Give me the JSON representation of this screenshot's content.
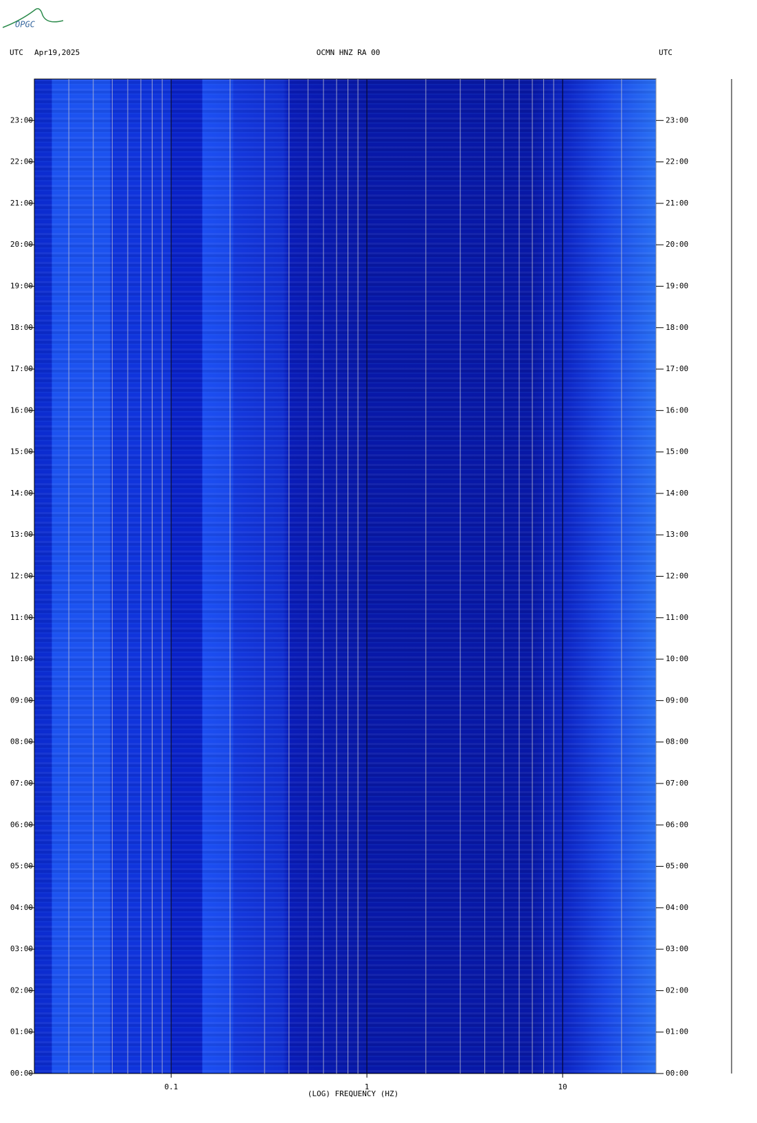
{
  "logo": "OPGC",
  "chart_data": {
    "type": "spectrogram",
    "title": "OCMN HNZ RA 00",
    "date": "Apr19,2025",
    "left_label": "UTC",
    "right_label": "UTC",
    "x_label": "(LOG) FREQUENCY (HZ)",
    "x_log": true,
    "xlim": [
      0.02,
      30
    ],
    "xticks": [
      {
        "value": 0.1,
        "label": "0.1"
      },
      1,
      10
    ],
    "xgrid": [
      0.03,
      0.04,
      0.05,
      0.06,
      0.07,
      0.08,
      0.09,
      0.1,
      0.2,
      0.3,
      0.4,
      0.5,
      0.6,
      0.7,
      0.8,
      0.9,
      1,
      2,
      3,
      4,
      5,
      6,
      7,
      8,
      9,
      10,
      20,
      30
    ],
    "ylim": [
      0,
      24
    ],
    "yticks": [
      {
        "value": 0,
        "label": "00:00"
      },
      {
        "value": 1,
        "label": "01:00"
      },
      {
        "value": 2,
        "label": "02:00"
      },
      {
        "value": 3,
        "label": "03:00"
      },
      {
        "value": 4,
        "label": "04:00"
      },
      {
        "value": 5,
        "label": "05:00"
      },
      {
        "value": 6,
        "label": "06:00"
      },
      {
        "value": 7,
        "label": "07:00"
      },
      {
        "value": 8,
        "label": "08:00"
      },
      {
        "value": 9,
        "label": "09:00"
      },
      {
        "value": 10,
        "label": "10:00"
      },
      {
        "value": 11,
        "label": "11:00"
      },
      {
        "value": 12,
        "label": "12:00"
      },
      {
        "value": 13,
        "label": "13:00"
      },
      {
        "value": 14,
        "label": "14:00"
      },
      {
        "value": 15,
        "label": "15:00"
      },
      {
        "value": 16,
        "label": "16:00"
      },
      {
        "value": 17,
        "label": "17:00"
      },
      {
        "value": 18,
        "label": "18:00"
      },
      {
        "value": 19,
        "label": "19:00"
      },
      {
        "value": 20,
        "label": "20:00"
      },
      {
        "value": 21,
        "label": "21:00"
      },
      {
        "value": 22,
        "label": "22:00"
      },
      {
        "value": 23,
        "label": "23:00"
      }
    ]
  }
}
